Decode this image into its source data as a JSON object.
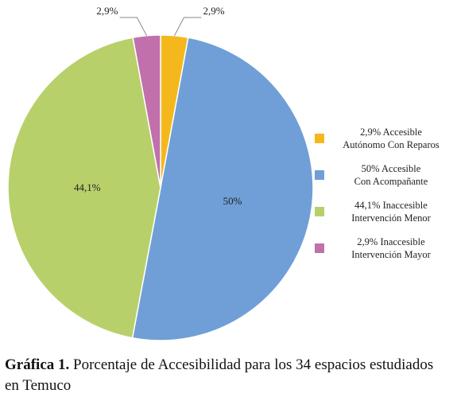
{
  "chart_data": {
    "type": "pie",
    "categories": [
      "2,9% Accesible Autónomo Con Reparos",
      "50% Accesible Con Acompañante",
      "44,1% Inaccesible Intervención Menor",
      "2,9% Inaccesible Intervención Mayor"
    ],
    "values": [
      2.9,
      50,
      44.1,
      2.9
    ],
    "data_labels": [
      "2,9%",
      "50%",
      "44,1%",
      "2,9%"
    ],
    "colors": [
      "#f5b81c",
      "#6f9fd6",
      "#b8d06a",
      "#c170ac"
    ],
    "legend_placement": "right",
    "legend": [
      {
        "line1": "2,9% Accesible",
        "line2": "Autónomo Con Reparos"
      },
      {
        "line1": "50% Accesible",
        "line2": "Con Acompañante"
      },
      {
        "line1": "44,1% Inaccesible",
        "line2": "Intervención Menor"
      },
      {
        "line1": "2,9% Inaccesible",
        "line2": "Intervención Mayor"
      }
    ]
  },
  "caption": {
    "label": "Gráfica 1.",
    "text": "Porcentaje de Accesibilidad  para los 34 espacios estudiados en Temuco"
  }
}
